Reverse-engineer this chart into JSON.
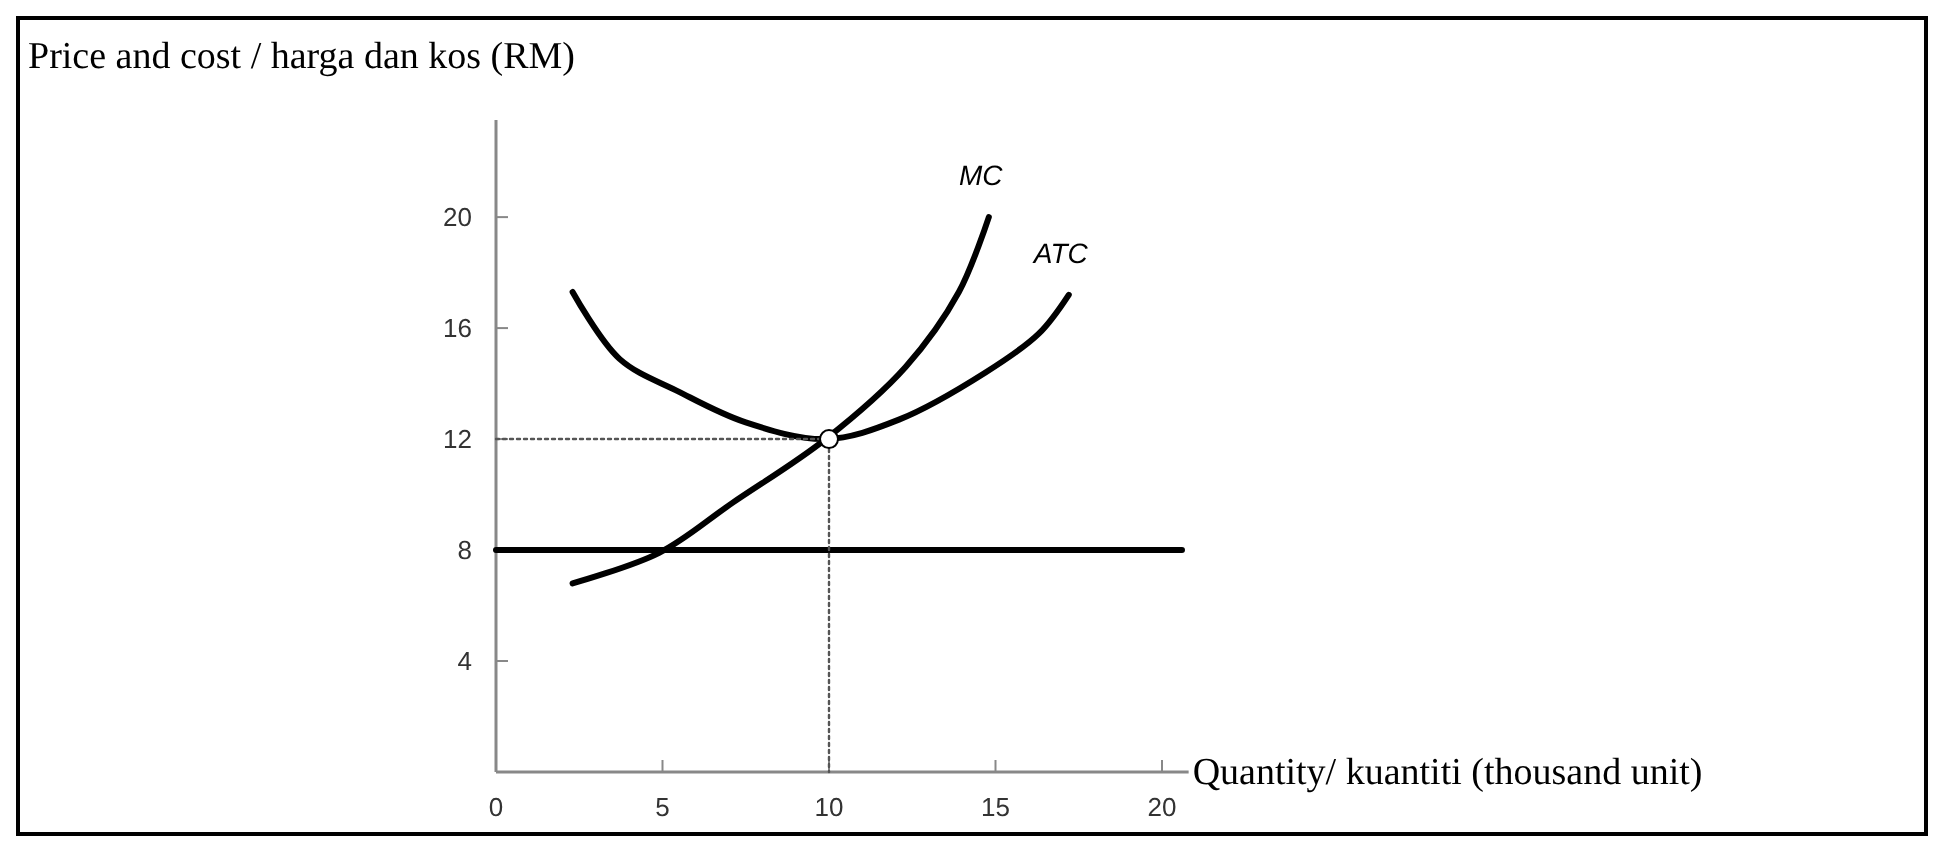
{
  "chart_data": {
    "type": "line",
    "ylabel": "Price and cost / harga dan kos (RM)",
    "xlabel": "Quantity/ kuantiti (thousand unit)",
    "xlim": [
      0,
      20.8
    ],
    "ylim": [
      0,
      23.5
    ],
    "xticks": [
      0,
      5,
      10,
      15,
      20
    ],
    "yticks": [
      4,
      8,
      12,
      16,
      20
    ],
    "grid": false,
    "marker": "none",
    "line_style": "solid",
    "series": [
      {
        "name": "MC",
        "color": "#000000",
        "x": [
          2.3,
          4.9,
          7.1,
          9.9,
          12.3,
          13.9,
          14.8
        ],
        "values": [
          6.8,
          7.9,
          9.7,
          12,
          14.6,
          17.3,
          20
        ]
      },
      {
        "name": "ATC",
        "color": "#000000",
        "x": [
          2.3,
          3.7,
          5.5,
          7.5,
          9.9,
          12.1,
          14.7,
          16.3,
          17.2
        ],
        "values": [
          17.3,
          14.9,
          13.7,
          12.6,
          12,
          12.7,
          14.4,
          15.8,
          17.2
        ]
      },
      {
        "color": "#000000",
        "x": [
          0,
          20.6
        ],
        "values": [
          8,
          8
        ]
      },
      {
        "color": "#555555",
        "line_style": "dotted",
        "x": [
          0,
          10,
          10
        ],
        "values": [
          12,
          12,
          0
        ]
      },
      {
        "type": "scatter",
        "color": "#000000",
        "marker": "circle",
        "x": [
          10
        ],
        "values": [
          12
        ]
      }
    ]
  }
}
